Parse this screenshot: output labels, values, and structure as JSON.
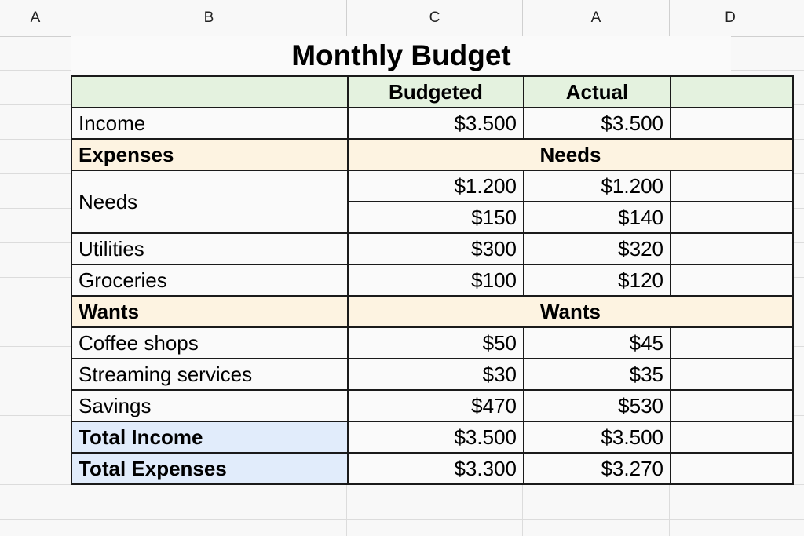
{
  "columns": [
    "A",
    "B",
    "C",
    "A",
    "D"
  ],
  "title": "Monthly Budget",
  "table": {
    "header": [
      "",
      "Budgeted",
      "Actual",
      ""
    ],
    "income": {
      "label": "Income",
      "budgeted": "$3.500",
      "actual": "$3.500"
    },
    "expenses_section": {
      "label": "Expenses",
      "center": "Needs"
    },
    "needs": {
      "label": "Needs",
      "rows": [
        {
          "budgeted": "$1.200",
          "actual": "$1.200"
        },
        {
          "budgeted": "$150",
          "actual": "$140"
        }
      ]
    },
    "utilities": {
      "label": "Utilities",
      "budgeted": "$300",
      "actual": "$320"
    },
    "groceries": {
      "label": "Groceries",
      "budgeted": "$100",
      "actual": "$120"
    },
    "wants_section": {
      "label": "Wants",
      "center": "Wants"
    },
    "coffee": {
      "label": "Coffee shops",
      "budgeted": "$50",
      "actual": "$45"
    },
    "streaming": {
      "label": "Streaming services",
      "budgeted": "$30",
      "actual": "$35"
    },
    "savings": {
      "label": "Savings",
      "budgeted": "$470",
      "actual": "$530"
    },
    "total_income": {
      "label": "Total Income",
      "budgeted": "$3.500",
      "actual": "$3.500"
    },
    "total_expenses": {
      "label": "Total Expenses",
      "budgeted": "$3.300",
      "actual": "$3.270"
    }
  },
  "colors": {
    "header_fill": "#e4f2df",
    "section_fill": "#fdf3e1",
    "total_fill": "#e1ecfb"
  }
}
